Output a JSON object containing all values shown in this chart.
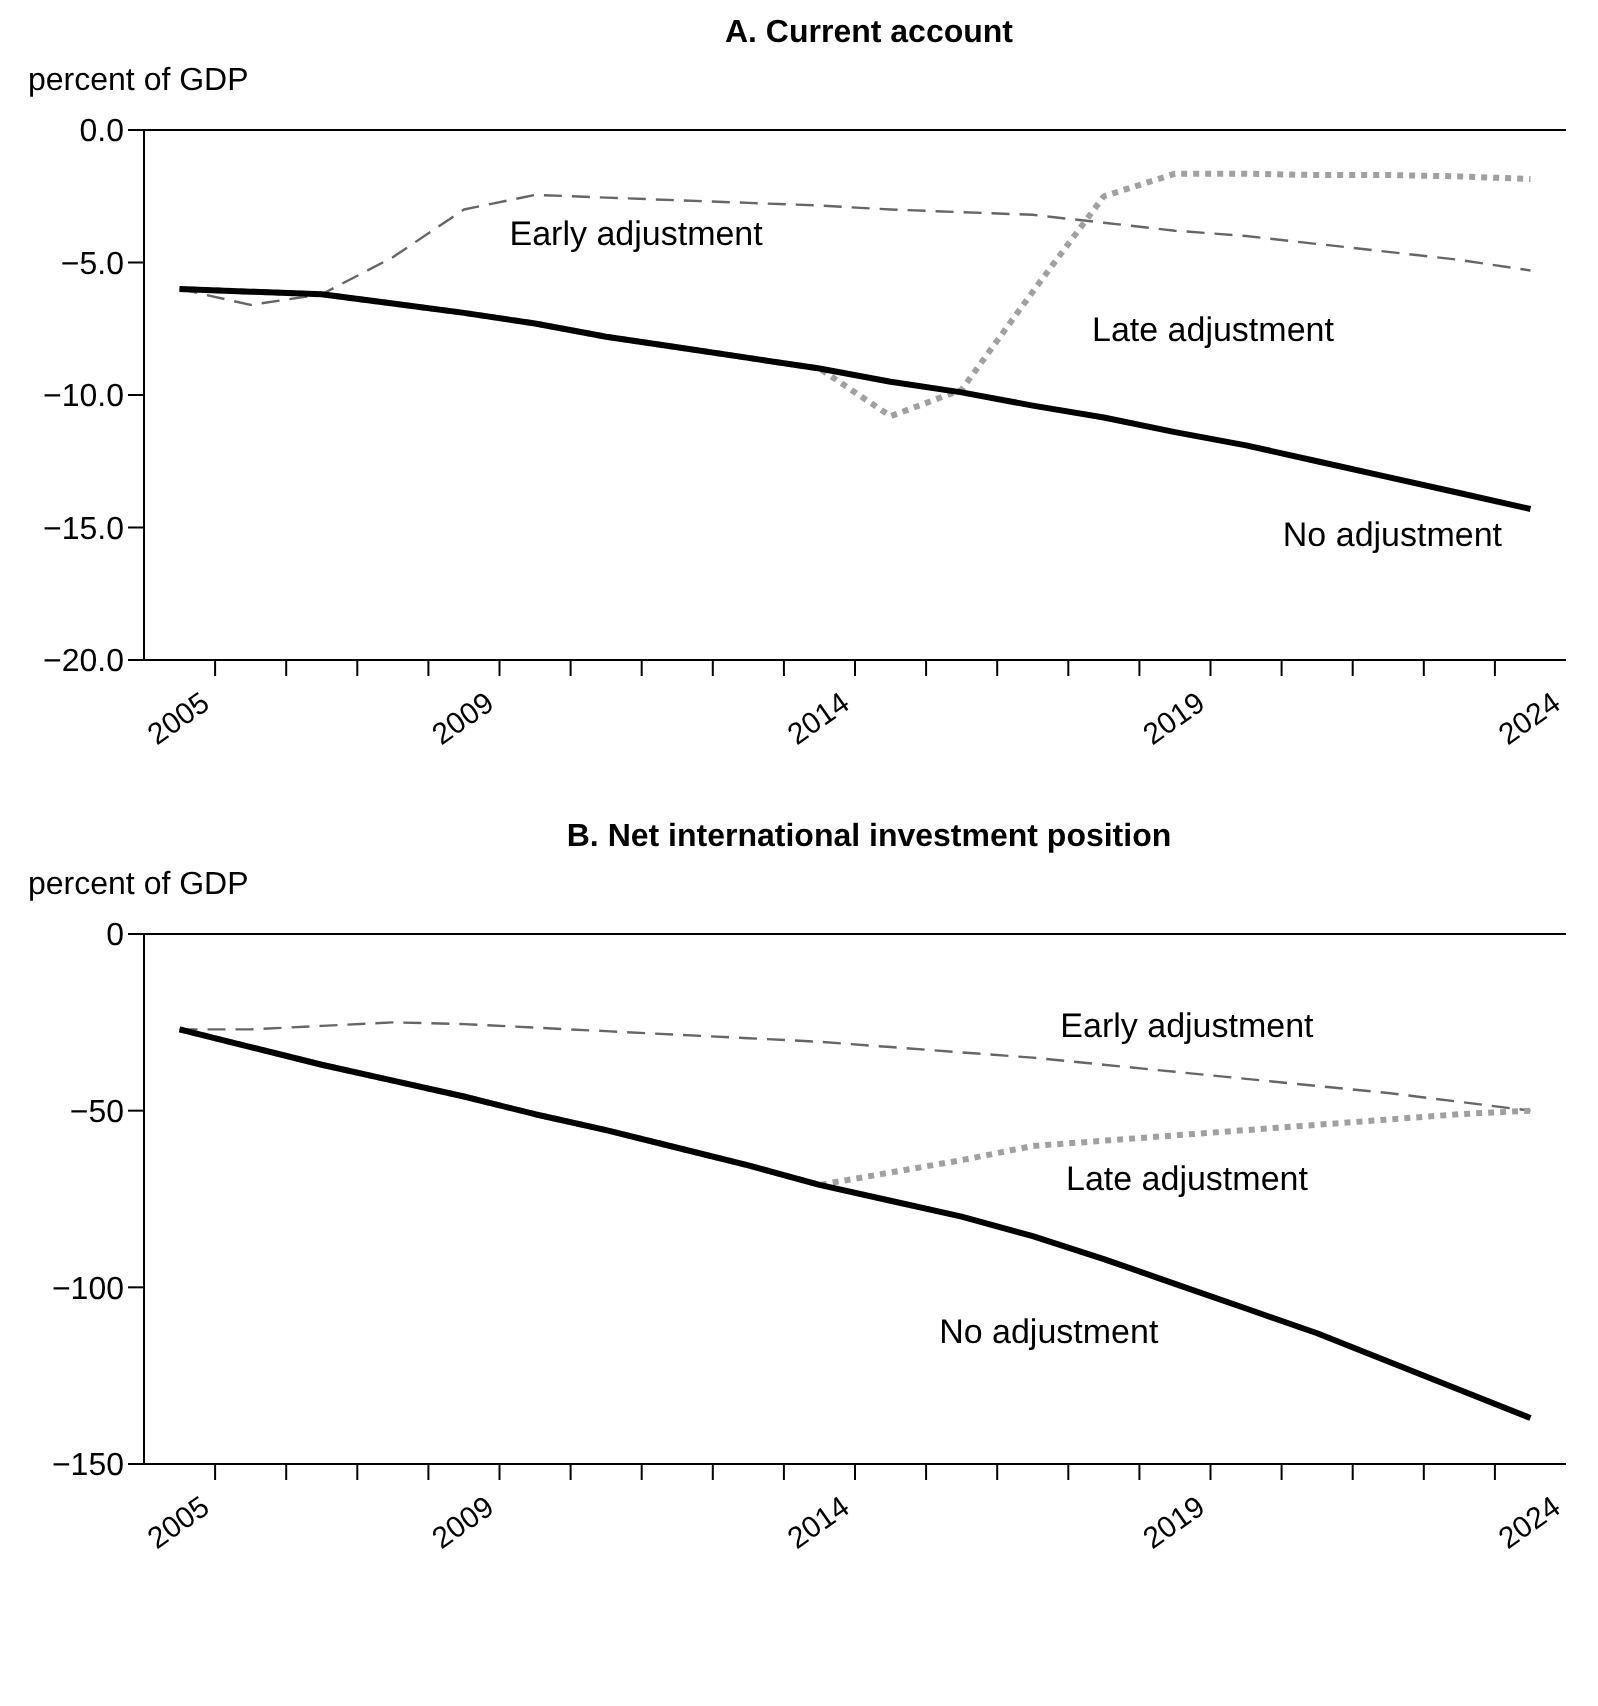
{
  "chart_data": [
    {
      "type": "line",
      "title": "A. Current account",
      "ylabel": "percent of GDP",
      "x": [
        2005,
        2006,
        2007,
        2008,
        2009,
        2010,
        2011,
        2012,
        2013,
        2014,
        2015,
        2016,
        2017,
        2018,
        2019,
        2020,
        2021,
        2022,
        2023,
        2024
      ],
      "series": [
        {
          "name": "Early adjustment",
          "color": "#666666",
          "line_style": "dashed",
          "values": [
            -6.0,
            -6.6,
            -6.2,
            -4.8,
            -3.0,
            -2.45,
            -2.55,
            -2.65,
            -2.75,
            -2.85,
            -3.0,
            -3.1,
            -3.2,
            -3.5,
            -3.8,
            -4.0,
            -4.3,
            -4.6,
            -4.9,
            -5.3
          ]
        },
        {
          "name": "Late adjustment",
          "color": "#a0a0a0",
          "line_style": "dotted",
          "values": [
            -6.0,
            -6.1,
            -6.2,
            -6.55,
            -6.9,
            -7.3,
            -7.8,
            -8.2,
            -8.6,
            -9.0,
            -10.8,
            -9.8,
            -6.1,
            -2.5,
            -1.65,
            -1.65,
            -1.7,
            -1.7,
            -1.75,
            -1.85
          ]
        },
        {
          "name": "No adjustment",
          "color": "#000000",
          "line_style": "solid",
          "values": [
            -6.0,
            -6.1,
            -6.2,
            -6.55,
            -6.9,
            -7.3,
            -7.8,
            -8.2,
            -8.6,
            -9.0,
            -9.5,
            -9.9,
            -10.4,
            -10.85,
            -11.4,
            -11.9,
            -12.5,
            -13.1,
            -13.7,
            -14.3
          ]
        }
      ],
      "xlim": [
        2004.5,
        2024.5
      ],
      "xticks": [
        2005,
        {
          "value": 2005.5,
          "label": null
        },
        {
          "value": 2006.5,
          "label": null
        },
        {
          "value": 2007.5,
          "label": null
        },
        {
          "value": 2008.5,
          "label": null
        },
        2009,
        {
          "value": 2009.5,
          "label": null
        },
        {
          "value": 2010.5,
          "label": null
        },
        {
          "value": 2011.5,
          "label": null
        },
        {
          "value": 2012.5,
          "label": null
        },
        {
          "value": 2013.5,
          "label": null
        },
        2014,
        {
          "value": 2014.5,
          "label": null
        },
        {
          "value": 2015.5,
          "label": null
        },
        {
          "value": 2016.5,
          "label": null
        },
        {
          "value": 2017.5,
          "label": null
        },
        {
          "value": 2018.5,
          "label": null
        },
        2019,
        {
          "value": 2019.5,
          "label": null
        },
        {
          "value": 2020.5,
          "label": null
        },
        {
          "value": 2021.5,
          "label": null
        },
        {
          "value": 2022.5,
          "label": null
        },
        {
          "value": 2023.5,
          "label": null
        },
        2024
      ],
      "ylim": [
        -20,
        0
      ],
      "yticks": [
        {
          "value": 0,
          "label": "0.0"
        },
        {
          "value": -5,
          "label": "−5.0"
        },
        {
          "value": -10,
          "label": "−10.0"
        },
        {
          "value": -15,
          "label": "−15.0"
        },
        {
          "value": -20,
          "label": "−20.0"
        }
      ]
    },
    {
      "type": "line",
      "title": "B. Net international investment position",
      "ylabel": "percent of GDP",
      "x": [
        2005,
        2006,
        2007,
        2008,
        2009,
        2010,
        2011,
        2012,
        2013,
        2014,
        2015,
        2016,
        2017,
        2018,
        2019,
        2020,
        2021,
        2022,
        2023,
        2024
      ],
      "series": [
        {
          "name": "Early adjustment",
          "color": "#666666",
          "line_style": "dashed",
          "values": [
            -27,
            -27,
            -26,
            -25,
            -25.5,
            -26.5,
            -27.5,
            -28.5,
            -29.5,
            -30.5,
            -32,
            -33.5,
            -35,
            -37,
            -39,
            -41,
            -43,
            -45,
            -47.5,
            -50
          ]
        },
        {
          "name": "Late adjustment",
          "color": "#a0a0a0",
          "line_style": "dotted",
          "values": [
            -27,
            -32,
            -37,
            -41.5,
            -46,
            -51,
            -55.5,
            -60.5,
            -65.5,
            -71,
            -67.5,
            -64,
            -60,
            -58.5,
            -57,
            -55.5,
            -54,
            -52.5,
            -51,
            -50
          ]
        },
        {
          "name": "No adjustment",
          "color": "#000000",
          "line_style": "solid",
          "values": [
            -27,
            -32,
            -37,
            -41.5,
            -46,
            -51,
            -55.5,
            -60.5,
            -65.5,
            -71,
            -75.5,
            -80,
            -85.5,
            -92,
            -99,
            -106,
            -113,
            -121,
            -129,
            -137
          ]
        }
      ],
      "xlim": [
        2004.5,
        2024.5
      ],
      "xticks": [
        2005,
        {
          "value": 2005.5,
          "label": null
        },
        {
          "value": 2006.5,
          "label": null
        },
        {
          "value": 2007.5,
          "label": null
        },
        {
          "value": 2008.5,
          "label": null
        },
        2009,
        {
          "value": 2009.5,
          "label": null
        },
        {
          "value": 2010.5,
          "label": null
        },
        {
          "value": 2011.5,
          "label": null
        },
        {
          "value": 2012.5,
          "label": null
        },
        {
          "value": 2013.5,
          "label": null
        },
        2014,
        {
          "value": 2014.5,
          "label": null
        },
        {
          "value": 2015.5,
          "label": null
        },
        {
          "value": 2016.5,
          "label": null
        },
        {
          "value": 2017.5,
          "label": null
        },
        {
          "value": 2018.5,
          "label": null
        },
        2019,
        {
          "value": 2019.5,
          "label": null
        },
        {
          "value": 2020.5,
          "label": null
        },
        {
          "value": 2021.5,
          "label": null
        },
        {
          "value": 2022.5,
          "label": null
        },
        {
          "value": 2023.5,
          "label": null
        },
        2024
      ],
      "ylim": [
        -150,
        0
      ],
      "yticks": [
        0,
        {
          "value": -50,
          "label": "−50"
        },
        {
          "value": -100,
          "label": "−100"
        },
        {
          "value": -150,
          "label": "−150"
        }
      ]
    }
  ]
}
